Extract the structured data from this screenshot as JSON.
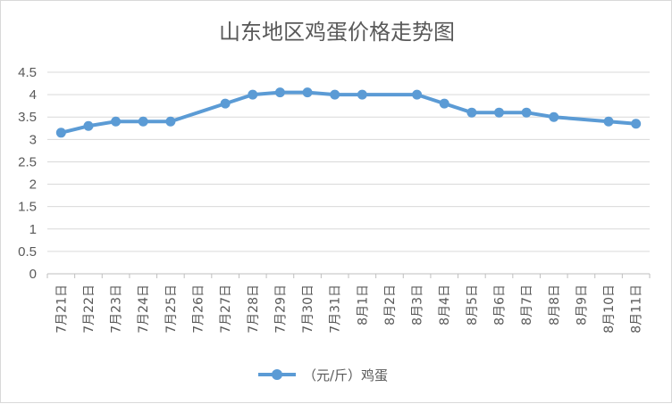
{
  "chart_data": {
    "type": "line",
    "title": "山东地区鸡蛋价格走势图",
    "categories": [
      "7月21日",
      "7月22日",
      "7月23日",
      "7月24日",
      "7月25日",
      "7月26日",
      "7月27日",
      "7月28日",
      "7月29日",
      "7月30日",
      "7月31日",
      "8月1日",
      "8月2日",
      "8月3日",
      "8月4日",
      "8月5日",
      "8月6日",
      "8月7日",
      "8月8日",
      "8月9日",
      "8月10日",
      "8月11日"
    ],
    "series": [
      {
        "name": "（元/斤）鸡蛋",
        "color": "#5b9bd5",
        "values": [
          3.15,
          3.3,
          3.4,
          3.4,
          3.4,
          null,
          3.8,
          4.0,
          4.05,
          4.05,
          4.0,
          4.0,
          null,
          4.0,
          3.8,
          3.6,
          3.6,
          3.6,
          3.5,
          null,
          3.4,
          3.35
        ]
      }
    ],
    "ylim": [
      0,
      4.5
    ],
    "yticks": [
      "0",
      "0.5",
      "1",
      "1.5",
      "2",
      "2.5",
      "3",
      "3.5",
      "4",
      "4.5"
    ],
    "grid": true,
    "legend_position": "bottom"
  }
}
